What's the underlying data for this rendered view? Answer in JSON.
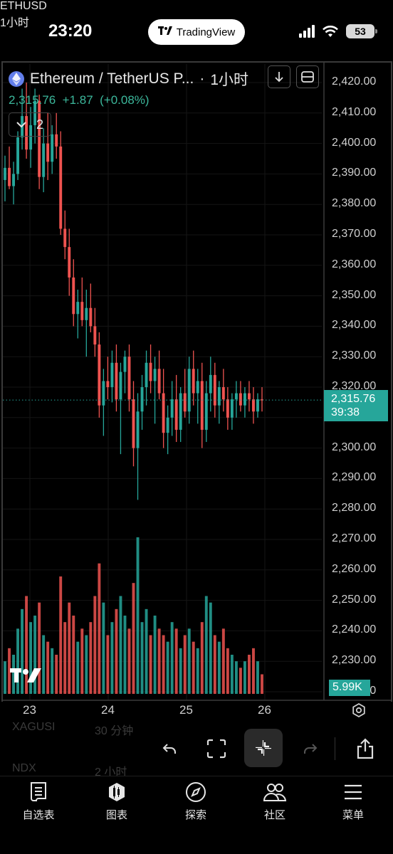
{
  "status_bar": {
    "time": "23:20",
    "app_pill": "TradingView",
    "battery": "53"
  },
  "chart": {
    "symbol_title": "Ethereum / TetherUS P...",
    "separator": "·",
    "interval": "1小时",
    "last_price": "2,315.76",
    "change": "+1.87",
    "change_pct": "(+0.08%)",
    "indicator_count": "2",
    "price_tag": "2,315.76",
    "countdown": "39:38",
    "volume_tag": "5.99K",
    "colors": {
      "up": "#26a69a",
      "down": "#ef5350",
      "accent": "#26a69a"
    }
  },
  "chart_data": {
    "type": "candlestick",
    "y_ticks": [
      "2,420.00",
      "2,410.00",
      "2,400.00",
      "2,390.00",
      "2,380.00",
      "2,370.00",
      "2,360.00",
      "2,350.00",
      "2,340.00",
      "2,330.00",
      "2,320.00",
      "2,310.00",
      "2,300.00",
      "2,290.00",
      "2,280.00",
      "2,270.00",
      "2,260.00",
      "2,250.00",
      "2,240.00",
      "2,230.00",
      "2,220.00"
    ],
    "ylim": [
      2220,
      2425
    ],
    "x_ticks": [
      "23",
      "24",
      "25",
      "26"
    ],
    "last_price": 2315.76,
    "candles": [
      [
        2388,
        2396,
        2381,
        2392
      ],
      [
        2392,
        2399,
        2385,
        2386
      ],
      [
        2386,
        2394,
        2380,
        2390
      ],
      [
        2390,
        2404,
        2388,
        2402
      ],
      [
        2402,
        2418,
        2398,
        2409
      ],
      [
        2409,
        2420,
        2395,
        2398
      ],
      [
        2398,
        2412,
        2392,
        2406
      ],
      [
        2406,
        2418,
        2400,
        2414
      ],
      [
        2414,
        2416,
        2385,
        2389
      ],
      [
        2389,
        2405,
        2384,
        2400
      ],
      [
        2400,
        2410,
        2388,
        2394
      ],
      [
        2394,
        2406,
        2390,
        2403
      ],
      [
        2403,
        2410,
        2395,
        2399
      ],
      [
        2399,
        2404,
        2370,
        2372
      ],
      [
        2372,
        2378,
        2362,
        2366
      ],
      [
        2366,
        2372,
        2350,
        2356
      ],
      [
        2356,
        2362,
        2340,
        2344
      ],
      [
        2344,
        2352,
        2336,
        2348
      ],
      [
        2348,
        2356,
        2340,
        2342
      ],
      [
        2342,
        2352,
        2330,
        2346
      ],
      [
        2346,
        2354,
        2338,
        2340
      ],
      [
        2340,
        2346,
        2330,
        2334
      ],
      [
        2334,
        2338,
        2310,
        2314
      ],
      [
        2314,
        2326,
        2304,
        2322
      ],
      [
        2322,
        2330,
        2316,
        2320
      ],
      [
        2320,
        2332,
        2315,
        2328
      ],
      [
        2328,
        2334,
        2312,
        2316
      ],
      [
        2316,
        2328,
        2298,
        2325
      ],
      [
        2325,
        2332,
        2318,
        2330
      ],
      [
        2330,
        2334,
        2312,
        2316
      ],
      [
        2316,
        2322,
        2294,
        2300
      ],
      [
        2300,
        2318,
        2283,
        2312
      ],
      [
        2312,
        2324,
        2306,
        2320
      ],
      [
        2320,
        2332,
        2314,
        2328
      ],
      [
        2328,
        2334,
        2318,
        2322
      ],
      [
        2322,
        2330,
        2308,
        2326
      ],
      [
        2326,
        2332,
        2316,
        2318
      ],
      [
        2318,
        2326,
        2300,
        2305
      ],
      [
        2305,
        2314,
        2298,
        2310
      ],
      [
        2310,
        2322,
        2304,
        2316
      ],
      [
        2316,
        2324,
        2302,
        2306
      ],
      [
        2306,
        2320,
        2302,
        2318
      ],
      [
        2318,
        2326,
        2310,
        2312
      ],
      [
        2312,
        2330,
        2308,
        2326
      ],
      [
        2326,
        2332,
        2314,
        2318
      ],
      [
        2318,
        2326,
        2308,
        2322
      ],
      [
        2322,
        2328,
        2300,
        2306
      ],
      [
        2306,
        2322,
        2302,
        2318
      ],
      [
        2318,
        2330,
        2312,
        2324
      ],
      [
        2324,
        2328,
        2310,
        2314
      ],
      [
        2314,
        2322,
        2308,
        2320
      ],
      [
        2320,
        2326,
        2312,
        2316
      ],
      [
        2316,
        2320,
        2306,
        2310
      ],
      [
        2310,
        2318,
        2306,
        2316
      ],
      [
        2316,
        2322,
        2310,
        2318
      ],
      [
        2318,
        2322,
        2312,
        2314
      ],
      [
        2314,
        2320,
        2310,
        2318
      ],
      [
        2318,
        2322,
        2312,
        2316
      ],
      [
        2316,
        2320,
        2308,
        2312
      ],
      [
        2312,
        2318,
        2310,
        2316
      ],
      [
        2316,
        2320,
        2312,
        2315.76
      ]
    ],
    "volumes": [
      10,
      14,
      12,
      20,
      26,
      30,
      22,
      24,
      28,
      18,
      16,
      14,
      12,
      36,
      22,
      28,
      24,
      16,
      20,
      18,
      22,
      30,
      40,
      28,
      18,
      22,
      26,
      30,
      24,
      20,
      34,
      48,
      22,
      26,
      18,
      24,
      20,
      18,
      16,
      22,
      20,
      14,
      18,
      20,
      16,
      14,
      22,
      30,
      28,
      18,
      16,
      20,
      14,
      12,
      10,
      8,
      10,
      12,
      14,
      10,
      6
    ]
  },
  "toolbar": {
    "symbol": "ETHUSD",
    "interval": "1小时",
    "ghost_rows": [
      "XAGUSI",
      "30 分钟",
      "NDX",
      "2 小时"
    ]
  },
  "tabs": [
    {
      "label": "自选表",
      "icon": "watchlist-icon"
    },
    {
      "label": "图表",
      "icon": "chart-icon"
    },
    {
      "label": "探索",
      "icon": "compass-icon"
    },
    {
      "label": "社区",
      "icon": "community-icon"
    },
    {
      "label": "菜单",
      "icon": "menu-icon"
    }
  ]
}
